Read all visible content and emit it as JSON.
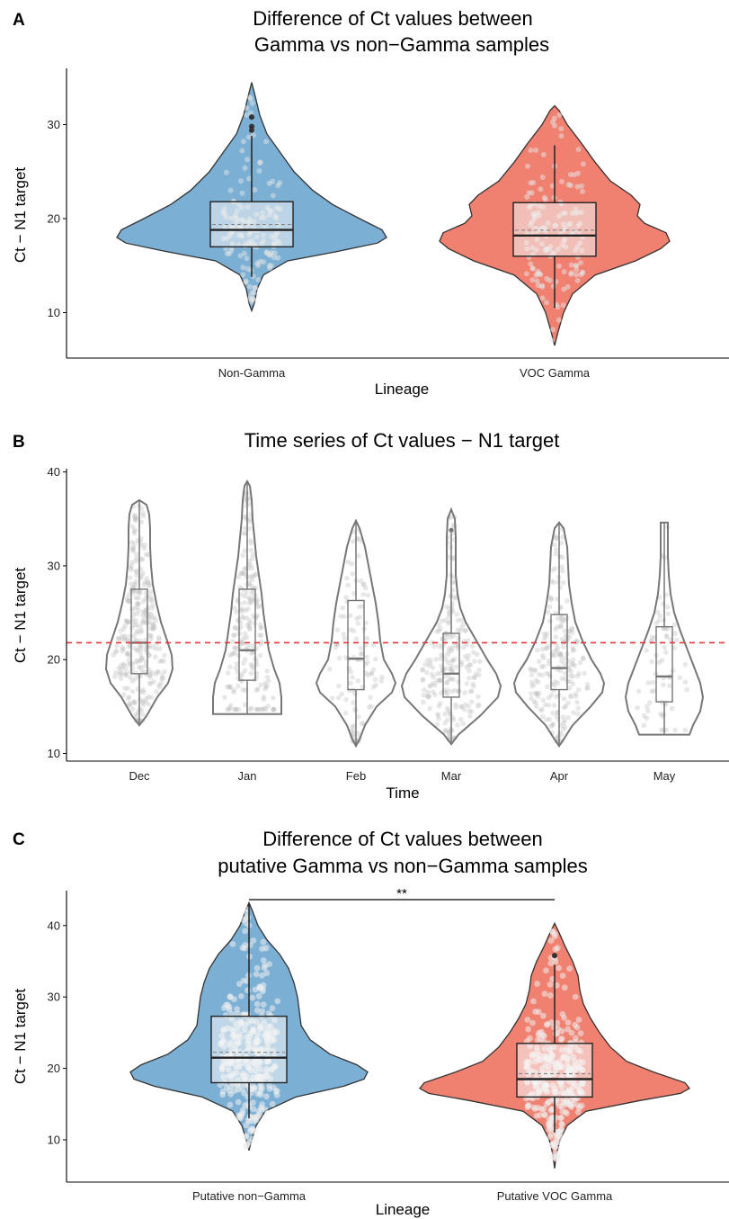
{
  "figure": {
    "panels": [
      {
        "letter": "A"
      },
      {
        "letter": "B"
      },
      {
        "letter": "C"
      }
    ]
  },
  "colors": {
    "non_gamma": "#7bafd4",
    "voc_gamma": "#f08070",
    "reference_line": "#e8363a",
    "violin_outline_b": "#777777"
  },
  "chart_data": [
    {
      "type": "violin",
      "panel": "A",
      "title_lines": [
        "Difference of Ct values between",
        "Gamma vs non−Gamma samples"
      ],
      "xlabel": "Lineage",
      "ylabel": "Ct − N1 target",
      "categories": [
        "Non-Gamma",
        "VOC Gamma"
      ],
      "ylim": [
        5,
        36
      ],
      "yticks": [
        10,
        20,
        30
      ],
      "grid": false,
      "series": [
        {
          "category": "Non-Gamma",
          "color": "#7bafd4",
          "violin_range": [
            10.2,
            34.5
          ],
          "mode": 18.0,
          "box": {
            "whisker_low": 13.8,
            "q1": 17.0,
            "median": 18.8,
            "q3": 21.8,
            "whisker_high": 28.8
          },
          "outliers": [
            29.4,
            29.8,
            30.8
          ]
        },
        {
          "category": "VOC Gamma",
          "color": "#f08070",
          "violin_range": [
            6.5,
            32.0
          ],
          "mode": 18.0,
          "box": {
            "whisker_low": 10.5,
            "q1": 16.0,
            "median": 18.2,
            "q3": 21.7,
            "whisker_high": 27.8
          },
          "outliers": []
        }
      ]
    },
    {
      "type": "violin",
      "panel": "B",
      "title_lines": [
        "Time series of Ct values − N1 target"
      ],
      "xlabel": "Time",
      "ylabel": "Ct − N1 target",
      "categories": [
        "Dec",
        "Jan",
        "Feb",
        "Mar",
        "Apr",
        "May"
      ],
      "ylim": [
        9.5,
        41
      ],
      "yticks": [
        10,
        20,
        30,
        40
      ],
      "reference_line": 21.8,
      "grid": false,
      "series": [
        {
          "category": "Dec",
          "violin_range": [
            13.0,
            37.0
          ],
          "box": {
            "whisker_low": 13.0,
            "q1": 18.5,
            "median": 21.8,
            "q3": 27.5,
            "whisker_high": 37.0
          }
        },
        {
          "category": "Jan",
          "violin_range": [
            14.2,
            39.0
          ],
          "box": {
            "whisker_low": 14.2,
            "q1": 17.8,
            "median": 21.0,
            "q3": 27.5,
            "whisker_high": 39.0
          }
        },
        {
          "category": "Feb",
          "violin_range": [
            10.8,
            34.8
          ],
          "box": {
            "whisker_low": 10.8,
            "q1": 16.8,
            "median": 20.1,
            "q3": 26.3,
            "whisker_high": 34.8
          }
        },
        {
          "category": "Mar",
          "violin_range": [
            11.0,
            36.0
          ],
          "box": {
            "whisker_low": 11.0,
            "q1": 16.0,
            "median": 18.5,
            "q3": 22.8,
            "whisker_high": 33.5
          },
          "outliers": [
            33.8
          ]
        },
        {
          "category": "Apr",
          "violin_range": [
            10.8,
            34.6
          ],
          "box": {
            "whisker_low": 10.8,
            "q1": 16.8,
            "median": 19.1,
            "q3": 24.8,
            "whisker_high": 34.6
          }
        },
        {
          "category": "May",
          "violin_range": [
            12.0,
            34.6
          ],
          "box": {
            "whisker_low": 12.0,
            "q1": 15.5,
            "median": 18.2,
            "q3": 23.5,
            "whisker_high": 34.6
          }
        }
      ]
    },
    {
      "type": "violin",
      "panel": "C",
      "title_lines": [
        "Difference of Ct values between",
        "putative Gamma vs non−Gamma samples"
      ],
      "xlabel": "Lineage",
      "ylabel": "Ct − N1 target",
      "categories": [
        "Putative non−Gamma",
        "Putative VOC Gamma"
      ],
      "ylim": [
        4.5,
        45.5
      ],
      "yticks": [
        10,
        20,
        30,
        40
      ],
      "grid": false,
      "significance": {
        "label": "**",
        "between": [
          "Putative non−Gamma",
          "Putative VOC Gamma"
        ]
      },
      "series": [
        {
          "category": "Putative non−Gamma",
          "color": "#7bafd4",
          "violin_range": [
            8.5,
            43.2
          ],
          "mode": 19.0,
          "box": {
            "whisker_low": 13.0,
            "q1": 18.0,
            "median": 21.5,
            "q3": 27.3,
            "whisker_high": 43.0
          },
          "outliers": []
        },
        {
          "category": "Putative VOC Gamma",
          "color": "#f08070",
          "violin_range": [
            6.0,
            40.3
          ],
          "mode": 17.0,
          "box": {
            "whisker_low": 11.0,
            "q1": 16.0,
            "median": 18.5,
            "q3": 23.5,
            "whisker_high": 34.5
          },
          "outliers": [
            35.8
          ]
        }
      ]
    }
  ]
}
